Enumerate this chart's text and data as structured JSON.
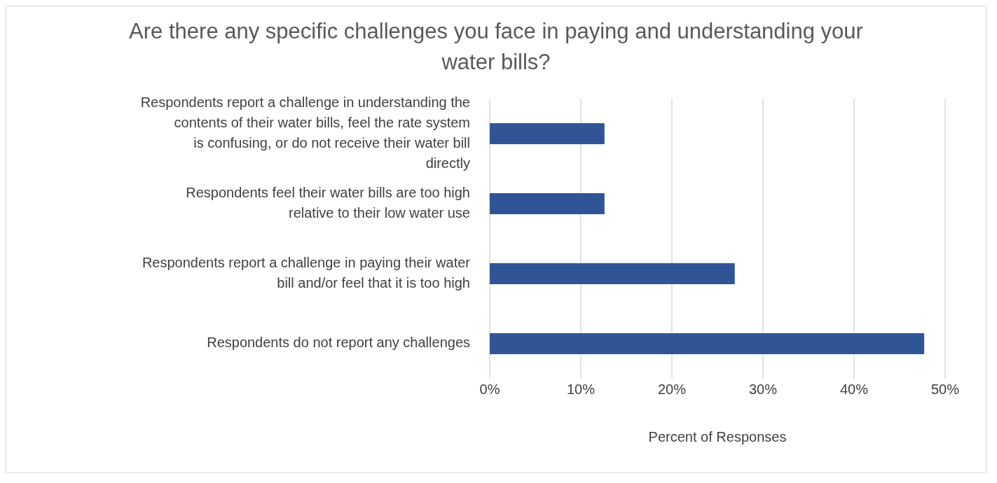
{
  "chart_data": {
    "type": "bar",
    "orientation": "horizontal",
    "title": "Are there any specific challenges you face in paying and understanding your water bills?",
    "xlabel": "Percent of Responses",
    "categories": [
      "Respondents report a challenge in understanding the contents of their water bills, feel the rate system is confusing, or do not receive their water bill directly",
      "Respondents feel their water bills are too high relative to their low water use",
      "Respondents report a challenge in paying their water bill and/or feel that it is too high",
      "Respondents do not report any challenges"
    ],
    "values": [
      12.6,
      12.6,
      26.9,
      47.7
    ],
    "color": "#2f5597",
    "xlim": [
      0,
      50
    ],
    "xticks": [
      {
        "value": 0,
        "label": "0%"
      },
      {
        "value": 10,
        "label": "10%"
      },
      {
        "value": 20,
        "label": "20%"
      },
      {
        "value": 30,
        "label": "30%"
      },
      {
        "value": 40,
        "label": "40%"
      },
      {
        "value": 50,
        "label": "50%"
      }
    ],
    "grid": "x"
  }
}
